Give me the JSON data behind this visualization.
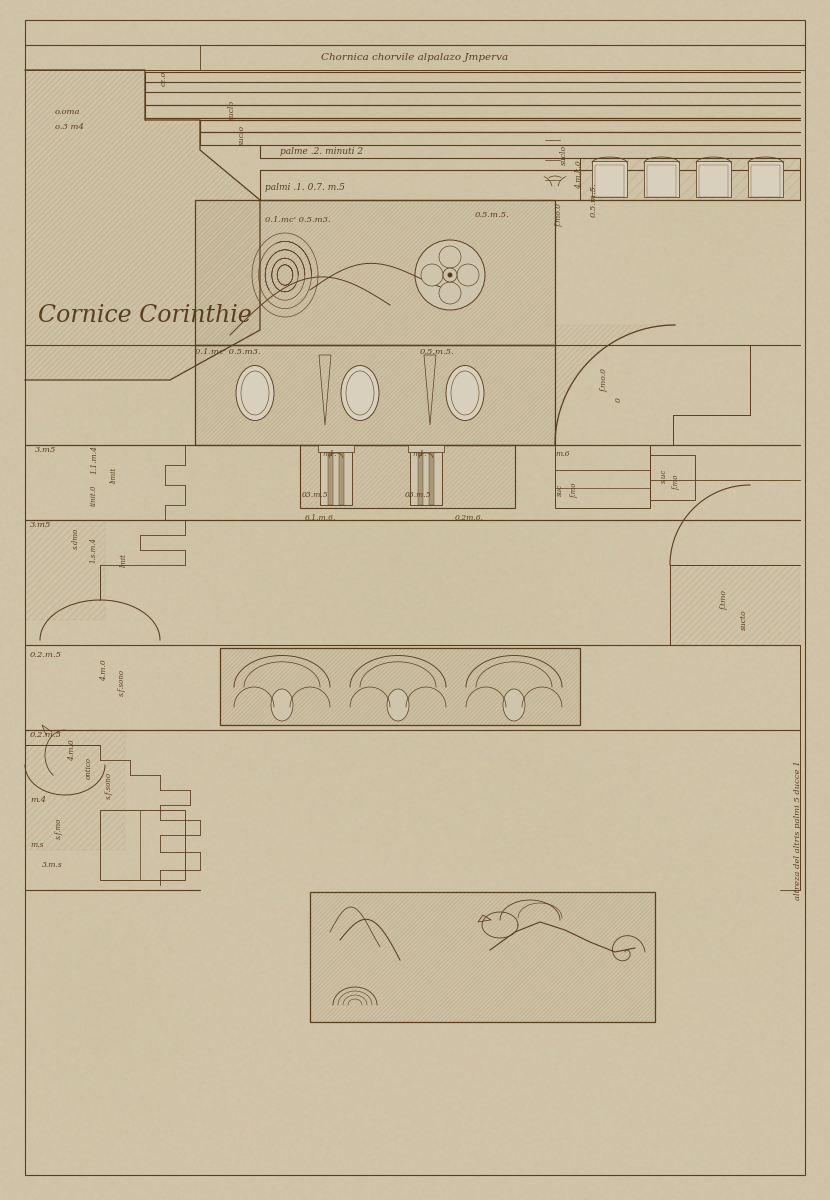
{
  "bg_color": "#c8bfa8",
  "paper_color": "#cfc5ad",
  "paper_color2": "#c4b99f",
  "paper_light": "#d8d0bc",
  "ink": "#5a3e1e",
  "ink2": "#7a5530",
  "hatch_fill": "#b8a888",
  "hatch_fill2": "#a89878",
  "figsize": [
    8.3,
    12.0
  ],
  "dpi": 100,
  "title": "Chornica chorvile alpalazo Jmperva",
  "label_cc": "Cornice Corinthie",
  "annot_br": "altreza del altris palmi 5 ducce 1"
}
